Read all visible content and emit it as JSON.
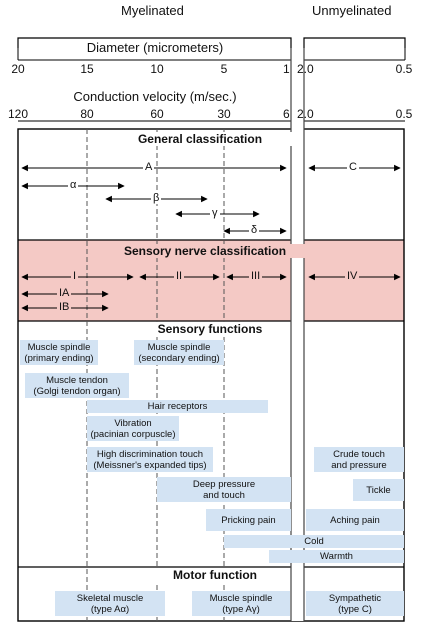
{
  "header": {
    "myelinated": "Myelinated",
    "unmyelinated": "Unmyelinated",
    "diameter_title": "Diameter (micrometers)",
    "velocity_title": "Conduction velocity (m/sec.)"
  },
  "diameter_ticks": [
    "20",
    "15",
    "10",
    "5",
    "1",
    "2.0",
    "0.5"
  ],
  "velocity_ticks": [
    "120",
    "80",
    "60",
    "30",
    "6",
    "2.0",
    "0.5"
  ],
  "sections": {
    "general": "General classification",
    "sensory_class": "Sensory nerve classification",
    "sensory_functions": "Sensory functions",
    "motor": "Motor function"
  },
  "general_fibers": [
    "A",
    "α",
    "β",
    "γ",
    "δ",
    "C"
  ],
  "sensory_fibers": [
    "I",
    "II",
    "III",
    "IV",
    "IA",
    "IB"
  ],
  "sensory_functions": [
    {
      "line1": "Muscle spindle",
      "line2": "(primary ending)"
    },
    {
      "line1": "Muscle spindle",
      "line2": "(secondary ending)"
    },
    {
      "line1": "Muscle tendon",
      "line2": "(Golgi tendon organ)"
    },
    {
      "line1": "Hair receptors",
      "line2": ""
    },
    {
      "line1": "Vibration",
      "line2": "(pacinian corpuscle)"
    },
    {
      "line1": "High discrimination touch",
      "line2": "(Meissner's expanded tips)"
    },
    {
      "line1": "Crude touch",
      "line2": "and pressure"
    },
    {
      "line1": "Deep pressure",
      "line2": "and touch"
    },
    {
      "line1": "Tickle",
      "line2": ""
    },
    {
      "line1": "Pricking pain",
      "line2": ""
    },
    {
      "line1": "Aching pain",
      "line2": ""
    },
    {
      "line1": "Cold",
      "line2": ""
    },
    {
      "line1": "Warmth",
      "line2": ""
    }
  ],
  "motor_functions": [
    {
      "line1": "Skeletal muscle",
      "line2": "(type Aα)"
    },
    {
      "line1": "Muscle spindle",
      "line2": "(type Aγ)"
    },
    {
      "line1": "Sympathetic",
      "line2": "(type C)"
    }
  ],
  "colors": {
    "box_fill": "#d3e3f3",
    "sensory_band": "#f4c9c5"
  }
}
